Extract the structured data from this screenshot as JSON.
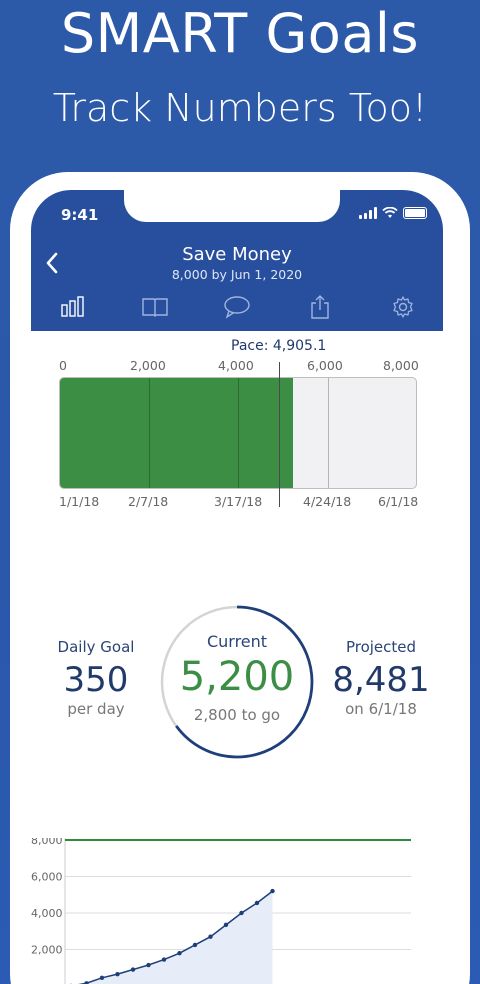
{
  "headline": {
    "title": "SMART Goals",
    "subtitle": "Track Numbers Too!"
  },
  "status_bar": {
    "time": "9:41"
  },
  "nav": {
    "back_icon": "chevron-left-icon",
    "title": "Save Money",
    "subtitle": "8,000 by Jun 1, 2020"
  },
  "tabs": [
    {
      "name": "chart-tab",
      "icon": "bar-chart-icon"
    },
    {
      "name": "journal-tab",
      "icon": "book-icon"
    },
    {
      "name": "comments-tab",
      "icon": "speech-bubble-icon"
    },
    {
      "name": "share-tab",
      "icon": "share-icon"
    },
    {
      "name": "settings-tab",
      "icon": "gear-icon"
    }
  ],
  "progress": {
    "pace_label": "Pace: 4,905.1",
    "top_ticks": [
      "0",
      "2,000",
      "4,000",
      "6,000",
      "8,000"
    ],
    "bottom_ticks": [
      "1/1/18",
      "2/7/18",
      "3/17/18",
      "4/24/18",
      "6/1/18"
    ],
    "current": 5200,
    "pace": 4905.1,
    "max": 8000,
    "fill_color": "#3b8e44"
  },
  "stats": {
    "daily": {
      "title": "Daily Goal",
      "value": "350",
      "sub": "per day"
    },
    "current": {
      "title": "Current",
      "value": "5,200",
      "sub": "2,800 to go",
      "fraction": 0.65
    },
    "projected": {
      "title": "Projected",
      "value": "8,481",
      "sub": "on 6/1/18"
    }
  },
  "chart_data": {
    "type": "line",
    "y_ticks": [
      "8,000",
      "6,000",
      "4,000",
      "2,000"
    ],
    "ylim": [
      0,
      8000
    ],
    "goal_line": 8000,
    "series": [
      {
        "values": [
          0,
          150,
          450,
          650,
          900,
          1150,
          1450,
          1800,
          2250,
          2700,
          3350,
          4000,
          4550,
          5200
        ]
      }
    ],
    "line_color": "#1f3f7a",
    "goal_color": "#2e8b3a"
  }
}
